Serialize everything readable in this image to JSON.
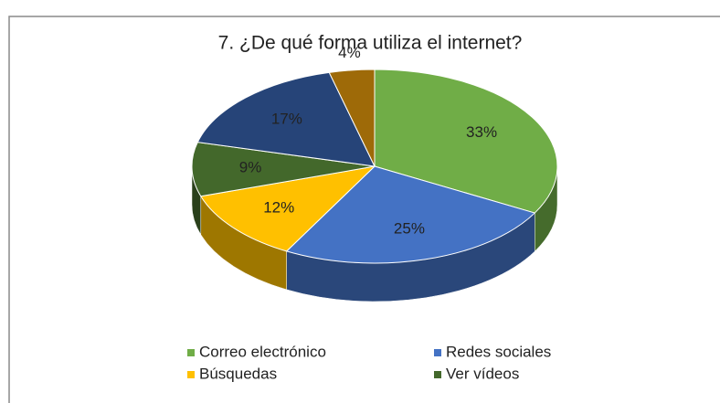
{
  "chart_data": {
    "type": "pie3d",
    "title": "7. ¿De qué forma utiliza el internet?",
    "categories": [
      "Correo electrónico",
      "Redes sociales",
      "Búsquedas",
      "Ver vídeos",
      null,
      null
    ],
    "values": [
      33,
      25,
      12,
      9,
      17,
      4
    ],
    "value_labels": [
      "33%",
      "25%",
      "12%",
      "9%",
      "17%",
      "4%"
    ],
    "colors": [
      "#70ad47",
      "#4472c4",
      "#ffc000",
      "#43682b",
      "#264478",
      "#9e6a08"
    ],
    "legend": "bottom"
  }
}
